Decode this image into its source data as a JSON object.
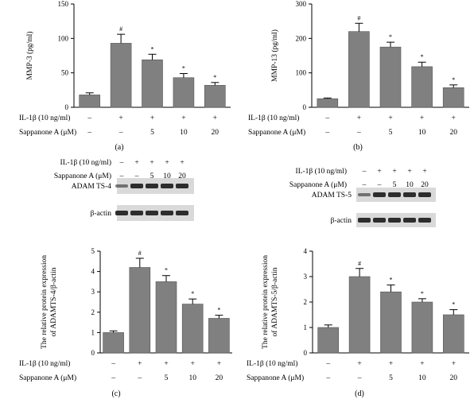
{
  "chart_data": [
    {
      "panel": "(a)",
      "type": "bar",
      "ylabel": "MMP-3 (pg/ml)",
      "ylim": [
        0,
        150
      ],
      "yticks": [
        "0",
        "50",
        "100",
        "150"
      ],
      "treatments": [
        {
          "label": "IL-1β (10 ng/ml)",
          "values": [
            "–",
            "+",
            "+",
            "+",
            "+"
          ]
        },
        {
          "label": "Sappanone A (μM)",
          "values": [
            "–",
            "–",
            "5",
            "10",
            "20"
          ]
        }
      ],
      "values": [
        18,
        93,
        69,
        43,
        32
      ],
      "errors": [
        3,
        13,
        8,
        6,
        4
      ],
      "significance": [
        "",
        "#",
        "*",
        "*",
        "*"
      ]
    },
    {
      "panel": "(b)",
      "type": "bar",
      "ylabel": "MMP-13 (pg/ml)",
      "ylim": [
        0,
        300
      ],
      "yticks": [
        "0",
        "100",
        "200",
        "300"
      ],
      "treatments": [
        {
          "label": "IL-1β (10 ng/ml)",
          "values": [
            "–",
            "+",
            "+",
            "+",
            "+"
          ]
        },
        {
          "label": "Sappanone A (μM)",
          "values": [
            "–",
            "–",
            "5",
            "10",
            "20"
          ]
        }
      ],
      "values": [
        25,
        220,
        175,
        118,
        57
      ],
      "errors": [
        2,
        24,
        14,
        13,
        8
      ],
      "significance": [
        "",
        "#",
        "*",
        "*",
        "*"
      ]
    },
    {
      "panel": "(c)",
      "type": "bar",
      "ylabel_line1": "The relative protein expression",
      "ylabel_line2": "of ADAMTS-4/β-actin",
      "ylim": [
        0,
        5
      ],
      "yticks": [
        "0",
        "1",
        "2",
        "3",
        "4",
        "5"
      ],
      "treatments": [
        {
          "label": "IL-1β (10 ng/ml)",
          "values": [
            "–",
            "+",
            "+",
            "+",
            "+"
          ]
        },
        {
          "label": "Sappanone A (μM)",
          "values": [
            "–",
            "–",
            "5",
            "10",
            "20"
          ]
        }
      ],
      "values": [
        1.0,
        4.2,
        3.5,
        2.4,
        1.7
      ],
      "errors": [
        0.08,
        0.45,
        0.3,
        0.25,
        0.15
      ],
      "significance": [
        "",
        "#",
        "*",
        "*",
        "*"
      ],
      "blot": {
        "treatments": [
          {
            "label": "IL-1β (10 ng/ml)",
            "values": [
              "–",
              "+",
              "+",
              "+",
              "+"
            ]
          },
          {
            "label": "Sappanone A (μM)",
            "values": [
              "–",
              "–",
              "5",
              "10",
              "20"
            ]
          }
        ],
        "bands": [
          "ADAM TS-4",
          "β-actin"
        ]
      }
    },
    {
      "panel": "(d)",
      "type": "bar",
      "ylabel_line1": "The relative protein expression",
      "ylabel_line2": "of ADAMTS-5/β-actin",
      "ylim": [
        0,
        4
      ],
      "yticks": [
        "0",
        "1",
        "2",
        "3",
        "4"
      ],
      "treatments": [
        {
          "label": "IL-1β (10 ng/ml)",
          "values": [
            "–",
            "+",
            "+",
            "+",
            "+"
          ]
        },
        {
          "label": "Sappanone A (μM)",
          "values": [
            "–",
            "–",
            "5",
            "10",
            "20"
          ]
        }
      ],
      "values": [
        1.0,
        3.0,
        2.4,
        2.0,
        1.5
      ],
      "errors": [
        0.1,
        0.32,
        0.27,
        0.13,
        0.2
      ],
      "significance": [
        "",
        "#",
        "*",
        "*",
        "*"
      ],
      "blot": {
        "treatments": [
          {
            "label": "IL-1β (10 ng/ml)",
            "values": [
              "–",
              "+",
              "+",
              "+",
              "+"
            ]
          },
          {
            "label": "Sappanone A (μM)",
            "values": [
              "–",
              "–",
              "5",
              "10",
              "20"
            ]
          }
        ],
        "bands": [
          "ADAM TS-5",
          "β-actin"
        ]
      }
    }
  ],
  "colors": {
    "bar": "#808080",
    "axis": "#000000",
    "band": "#1a1a1a",
    "blot_bg": "#d9d9d9"
  }
}
